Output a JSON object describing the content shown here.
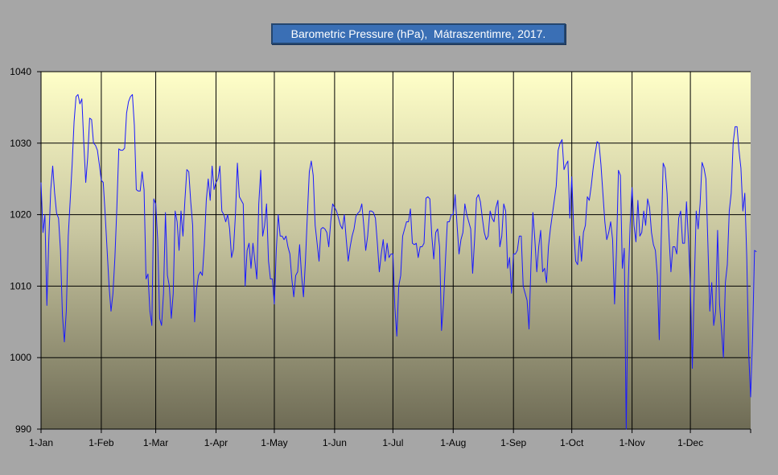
{
  "chart_data": {
    "type": "line",
    "title": "Barometric Pressure (hPa),  Mátraszentimre, 2017.",
    "xlabel": "",
    "ylabel": "",
    "ylim": [
      990,
      1040
    ],
    "y_ticks": [
      990,
      1000,
      1010,
      1020,
      1030,
      1040
    ],
    "x_range_days": [
      1,
      366
    ],
    "x_ticks": [
      {
        "day": 1,
        "label": "1-Jan"
      },
      {
        "day": 32,
        "label": "1-Feb"
      },
      {
        "day": 60,
        "label": "1-Mar"
      },
      {
        "day": 91,
        "label": "1-Apr"
      },
      {
        "day": 121,
        "label": "1-May"
      },
      {
        "day": 152,
        "label": "1-Jun"
      },
      {
        "day": 182,
        "label": "1-Jul"
      },
      {
        "day": 213,
        "label": "1-Aug"
      },
      {
        "day": 244,
        "label": "1-Sep"
      },
      {
        "day": 274,
        "label": "1-Oct"
      },
      {
        "day": 305,
        "label": "1-Nov"
      },
      {
        "day": 335,
        "label": "1-Dec"
      }
    ],
    "grid": true,
    "legend": "none",
    "colors": {
      "line": "#1a1aff",
      "page_bg": "#a6a6a6",
      "plot_top": "#ffffc8",
      "plot_bottom": "#6e6b55",
      "grid": "#000000",
      "title_bg": "#3a6fb5",
      "title_text": "#ffffff"
    },
    "series": [
      {
        "values": [
          1024.5,
          1017.5,
          1020.0,
          1007.3,
          1016.5,
          1023.5,
          1026.8,
          1023.0,
          1020.2,
          1019.5,
          1015.0,
          1006.0,
          1002.2,
          1006.5,
          1017.0,
          1022.0,
          1027.0,
          1033.0,
          1036.5,
          1036.8,
          1035.5,
          1036.2,
          1030.0,
          1024.5,
          1028.0,
          1033.5,
          1033.3,
          1030.0,
          1029.7,
          1029.0,
          1027.0,
          1024.8,
          1024.5,
          1020.0,
          1015.0,
          1010.0,
          1006.5,
          1009.0,
          1014.0,
          1021.0,
          1029.2,
          1029.0,
          1029.0,
          1029.3,
          1034.2,
          1035.8,
          1036.5,
          1036.8,
          1032.5,
          1023.5,
          1023.3,
          1023.3,
          1026.0,
          1023.5,
          1011.0,
          1011.7,
          1006.5,
          1004.5,
          1022.2,
          1021.5,
          1016.5,
          1005.5,
          1004.5,
          1009.0,
          1020.3,
          1011.5,
          1010.0,
          1005.5,
          1009.0,
          1020.5,
          1019.0,
          1015.0,
          1020.5,
          1017.0,
          1022.0,
          1026.3,
          1026.0,
          1021.8,
          1018.5,
          1005.0,
          1009.5,
          1011.5,
          1012.0,
          1011.5,
          1015.8,
          1022.0,
          1025.0,
          1022.0,
          1026.8,
          1023.5,
          1024.5,
          1025.0,
          1026.8,
          1020.5,
          1020.0,
          1019.0,
          1020.0,
          1018.0,
          1014.0,
          1015.2,
          1020.0,
          1027.2,
          1022.5,
          1022.0,
          1021.5,
          1010.0,
          1015.0,
          1016.0,
          1012.5,
          1016.0,
          1013.5,
          1011.0,
          1021.5,
          1026.2,
          1017.0,
          1018.5,
          1021.5,
          1013.5,
          1011.0,
          1011.0,
          1007.5,
          1015.0,
          1020.0,
          1017.0,
          1017.0,
          1016.5,
          1017.0,
          1015.5,
          1014.5,
          1011.0,
          1008.5,
          1011.5,
          1012.0,
          1015.8,
          1011.5,
          1008.5,
          1013.5,
          1020.0,
          1026.0,
          1027.5,
          1025.5,
          1018.5,
          1016.0,
          1013.5,
          1018.0,
          1018.2,
          1018.0,
          1017.5,
          1015.5,
          1019.0,
          1021.5,
          1021.0,
          1020.5,
          1019.5,
          1018.5,
          1018.0,
          1020.0,
          1016.5,
          1013.5,
          1015.5,
          1017.0,
          1018.0,
          1019.8,
          1020.2,
          1020.5,
          1021.5,
          1018.5,
          1015.0,
          1017.0,
          1020.5,
          1020.5,
          1020.3,
          1019.5,
          1016.0,
          1012.0,
          1014.5,
          1016.5,
          1013.5,
          1016.0,
          1014.0,
          1014.5,
          1014.5,
          1007.0,
          1003.0,
          1010.0,
          1011.5,
          1017.0,
          1018.0,
          1019.0,
          1019.0,
          1020.8,
          1016.0,
          1015.8,
          1016.0,
          1014.0,
          1015.5,
          1015.5,
          1016.0,
          1022.3,
          1022.5,
          1022.2,
          1017.0,
          1013.8,
          1017.5,
          1018.0,
          1015.5,
          1003.8,
          1007.5,
          1013.5,
          1019.0,
          1019.0,
          1020.0,
          1020.0,
          1022.8,
          1018.5,
          1014.5,
          1016.5,
          1017.5,
          1021.5,
          1020.0,
          1019.0,
          1018.0,
          1011.8,
          1016.5,
          1022.3,
          1022.8,
          1021.8,
          1019.5,
          1017.5,
          1016.5,
          1017.0,
          1020.5,
          1019.5,
          1019.0,
          1021.0,
          1022.0,
          1015.5,
          1017.0,
          1021.5,
          1020.5,
          1012.5,
          1014.0,
          1009.0,
          1014.5,
          1014.5,
          1015.0,
          1017.0,
          1017.0,
          1010.0,
          1009.0,
          1008.0,
          1004.0,
          1013.0,
          1020.3,
          1016.5,
          1012.0,
          1015.5,
          1017.8,
          1012.0,
          1012.5,
          1010.5,
          1015.5,
          1018.0,
          1020.0,
          1022.0,
          1024.0,
          1029.0,
          1030.0,
          1030.5,
          1026.3,
          1027.0,
          1027.5,
          1019.5,
          1025.3,
          1018.0,
          1013.5,
          1013.0,
          1017.0,
          1013.5,
          1017.5,
          1018.5,
          1022.5,
          1022.0,
          1024.0,
          1026.5,
          1028.5,
          1030.2,
          1030.0,
          1027.0,
          1023.0,
          1019.0,
          1016.5,
          1017.5,
          1019.0,
          1016.5,
          1007.5,
          1015.0,
          1026.2,
          1025.5,
          1012.5,
          1015.3,
          990.0,
          1010.0,
          1018.5,
          1023.8,
          1018.5,
          1016.2,
          1022.0,
          1017.0,
          1017.5,
          1020.5,
          1018.5,
          1022.2,
          1021.0,
          1017.5,
          1015.8,
          1015.0,
          1011.5,
          1002.5,
          1016.5,
          1027.2,
          1026.5,
          1023.0,
          1017.0,
          1012.0,
          1015.5,
          1015.5,
          1014.5,
          1019.5,
          1020.5,
          1016.0,
          1016.0,
          1021.8,
          1016.5,
          1010.0,
          998.5,
          1010.0,
          1020.5,
          1018.0,
          1021.5,
          1027.3,
          1026.5,
          1025.0,
          1016.0,
          1006.5,
          1010.5,
          1004.5,
          1006.5,
          1017.8,
          1007.5,
          1004.0,
          1000.0,
          1010.5,
          1013.0,
          1020.5,
          1023.0,
          1030.0,
          1032.3,
          1032.3,
          1029.0,
          1026.5,
          1020.5,
          1023.0,
          1014.0,
          1000.5,
          994.5,
          1003.0,
          1015.0,
          1014.8
        ]
      }
    ]
  }
}
